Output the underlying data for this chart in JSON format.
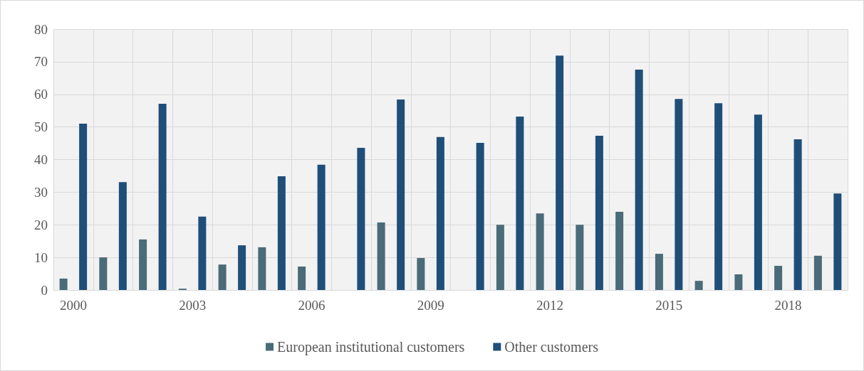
{
  "chart_data": {
    "type": "bar",
    "categories": [
      "2000",
      null,
      null,
      "2003",
      null,
      null,
      "2006",
      null,
      null,
      "2009",
      null,
      null,
      "2012",
      null,
      null,
      "2015",
      null,
      null,
      "2018",
      null
    ],
    "series": [
      {
        "name": "European institutional customers",
        "color": "#4a6b78",
        "values": [
          3.5,
          10.0,
          15.5,
          0.4,
          7.8,
          13.1,
          7.2,
          0,
          20.7,
          9.8,
          0,
          20.0,
          23.5,
          20.0,
          24.0,
          11.1,
          2.8,
          4.8,
          7.4,
          10.5
        ]
      },
      {
        "name": "Other customers",
        "color": "#1f4e79",
        "values": [
          51.0,
          33.1,
          57.1,
          22.5,
          13.7,
          34.9,
          38.4,
          43.6,
          58.4,
          46.9,
          45.1,
          53.2,
          71.9,
          47.3,
          67.6,
          58.6,
          57.3,
          53.8,
          46.2,
          29.6
        ]
      }
    ],
    "ylim": [
      0,
      80
    ],
    "yticks": [
      0,
      10,
      20,
      30,
      40,
      50,
      60,
      70,
      80
    ],
    "grid": true,
    "legend": "bottom"
  }
}
